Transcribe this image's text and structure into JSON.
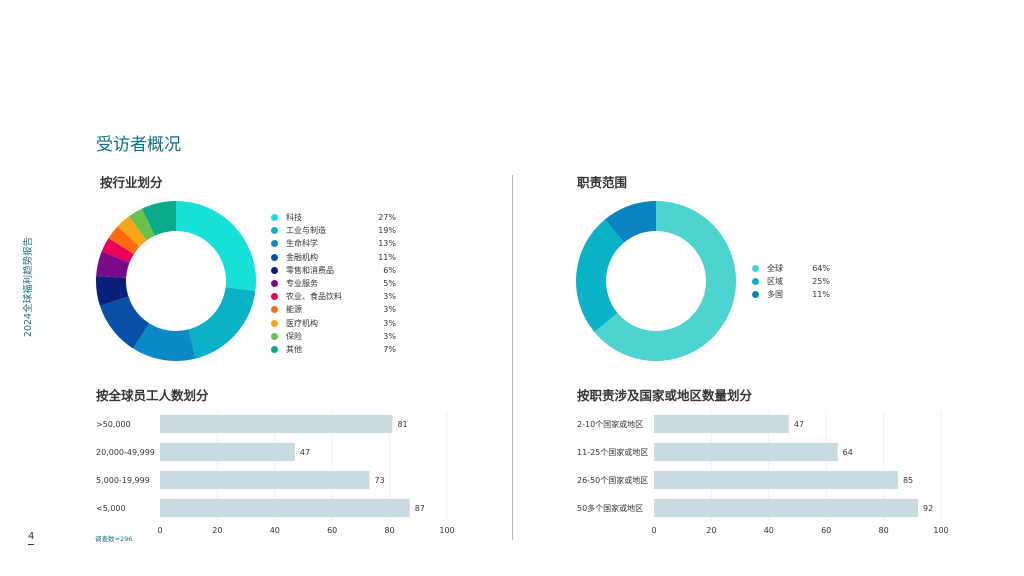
{
  "page": {
    "title": "受访者概况",
    "side_title": "2024全球福利趋势报告",
    "page_number": "4",
    "note": "调查数=296"
  },
  "chart_data": [
    {
      "type": "pie",
      "title": "按行业划分",
      "donut": true,
      "categories": [
        "科技",
        "工业与制造",
        "生命科学",
        "金融机构",
        "零售和消费品",
        "专业服务",
        "农业、食品饮料",
        "能源",
        "医疗机构",
        "保险",
        "其他"
      ],
      "values": [
        27,
        19,
        13,
        11,
        6,
        5,
        3,
        3,
        3,
        3,
        7
      ],
      "labels": [
        "27%",
        "19%",
        "13%",
        "11%",
        "6%",
        "5%",
        "3%",
        "3%",
        "3%",
        "3%",
        "7%"
      ],
      "colors": [
        "#17e0d8",
        "#0ab2c8",
        "#0a8ac6",
        "#0a4fa8",
        "#0a1f7a",
        "#7a0a8a",
        "#e8005a",
        "#ff6a13",
        "#f9a51a",
        "#6cc04a",
        "#0aab8a"
      ]
    },
    {
      "type": "pie",
      "title": "职责范围",
      "donut": true,
      "categories": [
        "全球",
        "区域",
        "多国"
      ],
      "values": [
        64,
        25,
        11
      ],
      "labels": [
        "64%",
        "25%",
        "11%"
      ],
      "colors": [
        "#4dd4d0",
        "#0ab2c8",
        "#0a84c0"
      ]
    },
    {
      "type": "bar",
      "orientation": "horizontal",
      "title": "按全球员工人数划分",
      "categories": [
        ">50,000",
        "20,000-49,999",
        "5,000-19,999",
        "<5,000"
      ],
      "values": [
        81,
        47,
        73,
        87
      ],
      "xlim": [
        0,
        100
      ],
      "xticks": [
        "0",
        "20",
        "40",
        "60",
        "80",
        "100"
      ],
      "color": "#c9dbe0"
    },
    {
      "type": "bar",
      "orientation": "horizontal",
      "title": "按职责涉及国家或地区数量划分",
      "categories": [
        "2-10个国家或地区",
        "11-25个国家或地区",
        "26-50个国家或地区",
        "50多个国家或地区"
      ],
      "values": [
        47,
        64,
        85,
        92
      ],
      "xlim": [
        0,
        100
      ],
      "xticks": [
        "0",
        "20",
        "40",
        "60",
        "80",
        "100"
      ],
      "color": "#c9dbe0"
    }
  ]
}
